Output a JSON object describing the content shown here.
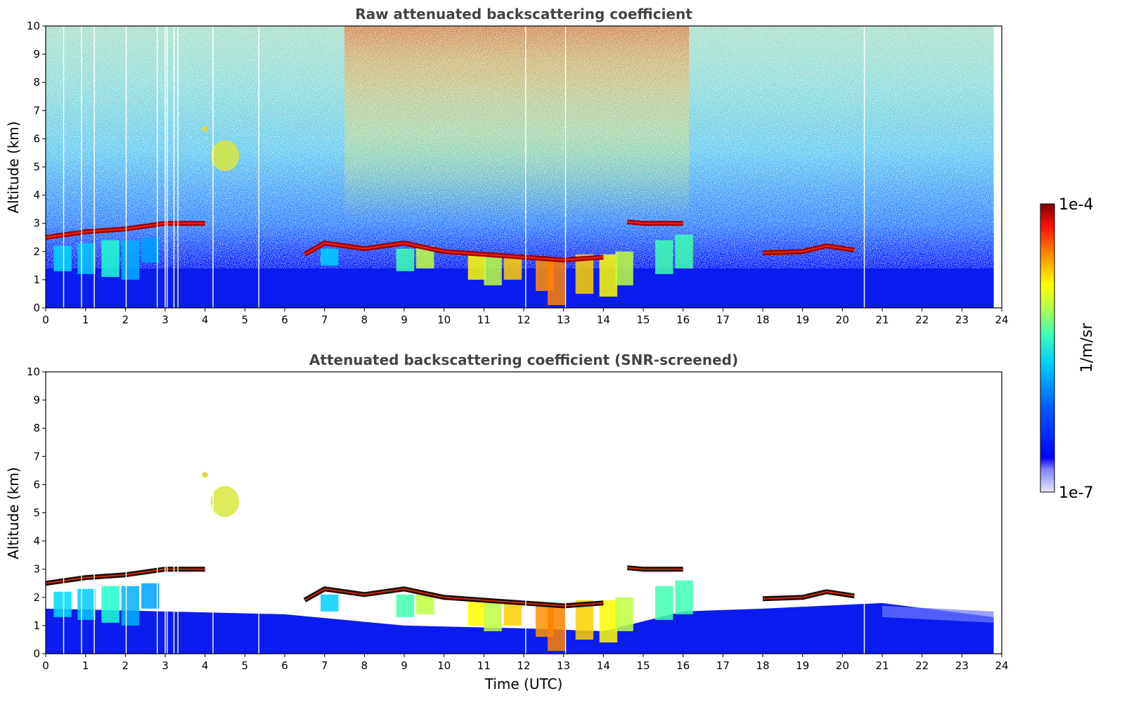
{
  "chart_data": [
    {
      "type": "heatmap",
      "title": "Raw attenuated backscattering coefficient",
      "xlabel": "",
      "ylabel": "Altitude (km)",
      "xlim": [
        0,
        24
      ],
      "ylim": [
        0,
        10
      ],
      "xticks": [
        "0",
        "1",
        "2",
        "3",
        "4",
        "5",
        "6",
        "7",
        "8",
        "9",
        "10",
        "11",
        "12",
        "13",
        "14",
        "15",
        "16",
        "17",
        "18",
        "19",
        "20",
        "21",
        "22",
        "23",
        "24"
      ],
      "yticks": [
        "0",
        "1",
        "2",
        "3",
        "4",
        "5",
        "6",
        "7",
        "8",
        "9",
        "10"
      ],
      "data_end_time": 23.8,
      "cloud_base_layer": [
        {
          "t": 0.0,
          "alt": 2.5
        },
        {
          "t": 1.0,
          "alt": 2.7
        },
        {
          "t": 2.0,
          "alt": 2.8
        },
        {
          "t": 3.0,
          "alt": 3.0
        },
        {
          "t": 4.0,
          "alt": 3.0
        },
        {
          "t": 6.5,
          "alt": 1.9
        },
        {
          "t": 7.0,
          "alt": 2.3
        },
        {
          "t": 8.0,
          "alt": 2.1
        },
        {
          "t": 9.0,
          "alt": 2.3
        },
        {
          "t": 10.0,
          "alt": 2.0
        },
        {
          "t": 11.0,
          "alt": 1.9
        },
        {
          "t": 12.0,
          "alt": 1.8
        },
        {
          "t": 13.0,
          "alt": 1.7
        },
        {
          "t": 14.0,
          "alt": 1.8
        },
        {
          "t": 14.6,
          "alt": 3.05
        },
        {
          "t": 15.0,
          "alt": 3.0
        },
        {
          "t": 16.0,
          "alt": 3.0
        },
        {
          "t": 18.0,
          "alt": 1.95
        },
        {
          "t": 19.0,
          "alt": 2.0
        },
        {
          "t": 19.6,
          "alt": 2.2
        },
        {
          "t": 20.3,
          "alt": 2.05
        }
      ],
      "mid_level_feature": {
        "t_start": 3.7,
        "t_end": 5.0,
        "alt_min": 4.5,
        "alt_max": 6.5
      }
    },
    {
      "type": "heatmap",
      "title": "Attenuated backscattering coefficient (SNR-screened)",
      "xlabel": "Time (UTC)",
      "ylabel": "Altitude (km)",
      "xlim": [
        0,
        24
      ],
      "ylim": [
        0,
        10
      ],
      "xticks": [
        "0",
        "1",
        "2",
        "3",
        "4",
        "5",
        "6",
        "7",
        "8",
        "9",
        "10",
        "11",
        "12",
        "13",
        "14",
        "15",
        "16",
        "17",
        "18",
        "19",
        "20",
        "21",
        "22",
        "23",
        "24"
      ],
      "yticks": [
        "0",
        "1",
        "2",
        "3",
        "4",
        "5",
        "6",
        "7",
        "8",
        "9",
        "10"
      ],
      "data_end_time": 23.8
    }
  ],
  "colorbar": {
    "max_label": "1e-4",
    "min_label": "1e-7",
    "unit_label": "1/m/sr",
    "colormap": "jet",
    "stops": [
      "#e8e8ff",
      "#0000ff",
      "#00a0ff",
      "#00ffff",
      "#80ff80",
      "#ffff00",
      "#ff8000",
      "#ff0000",
      "#800000"
    ]
  }
}
